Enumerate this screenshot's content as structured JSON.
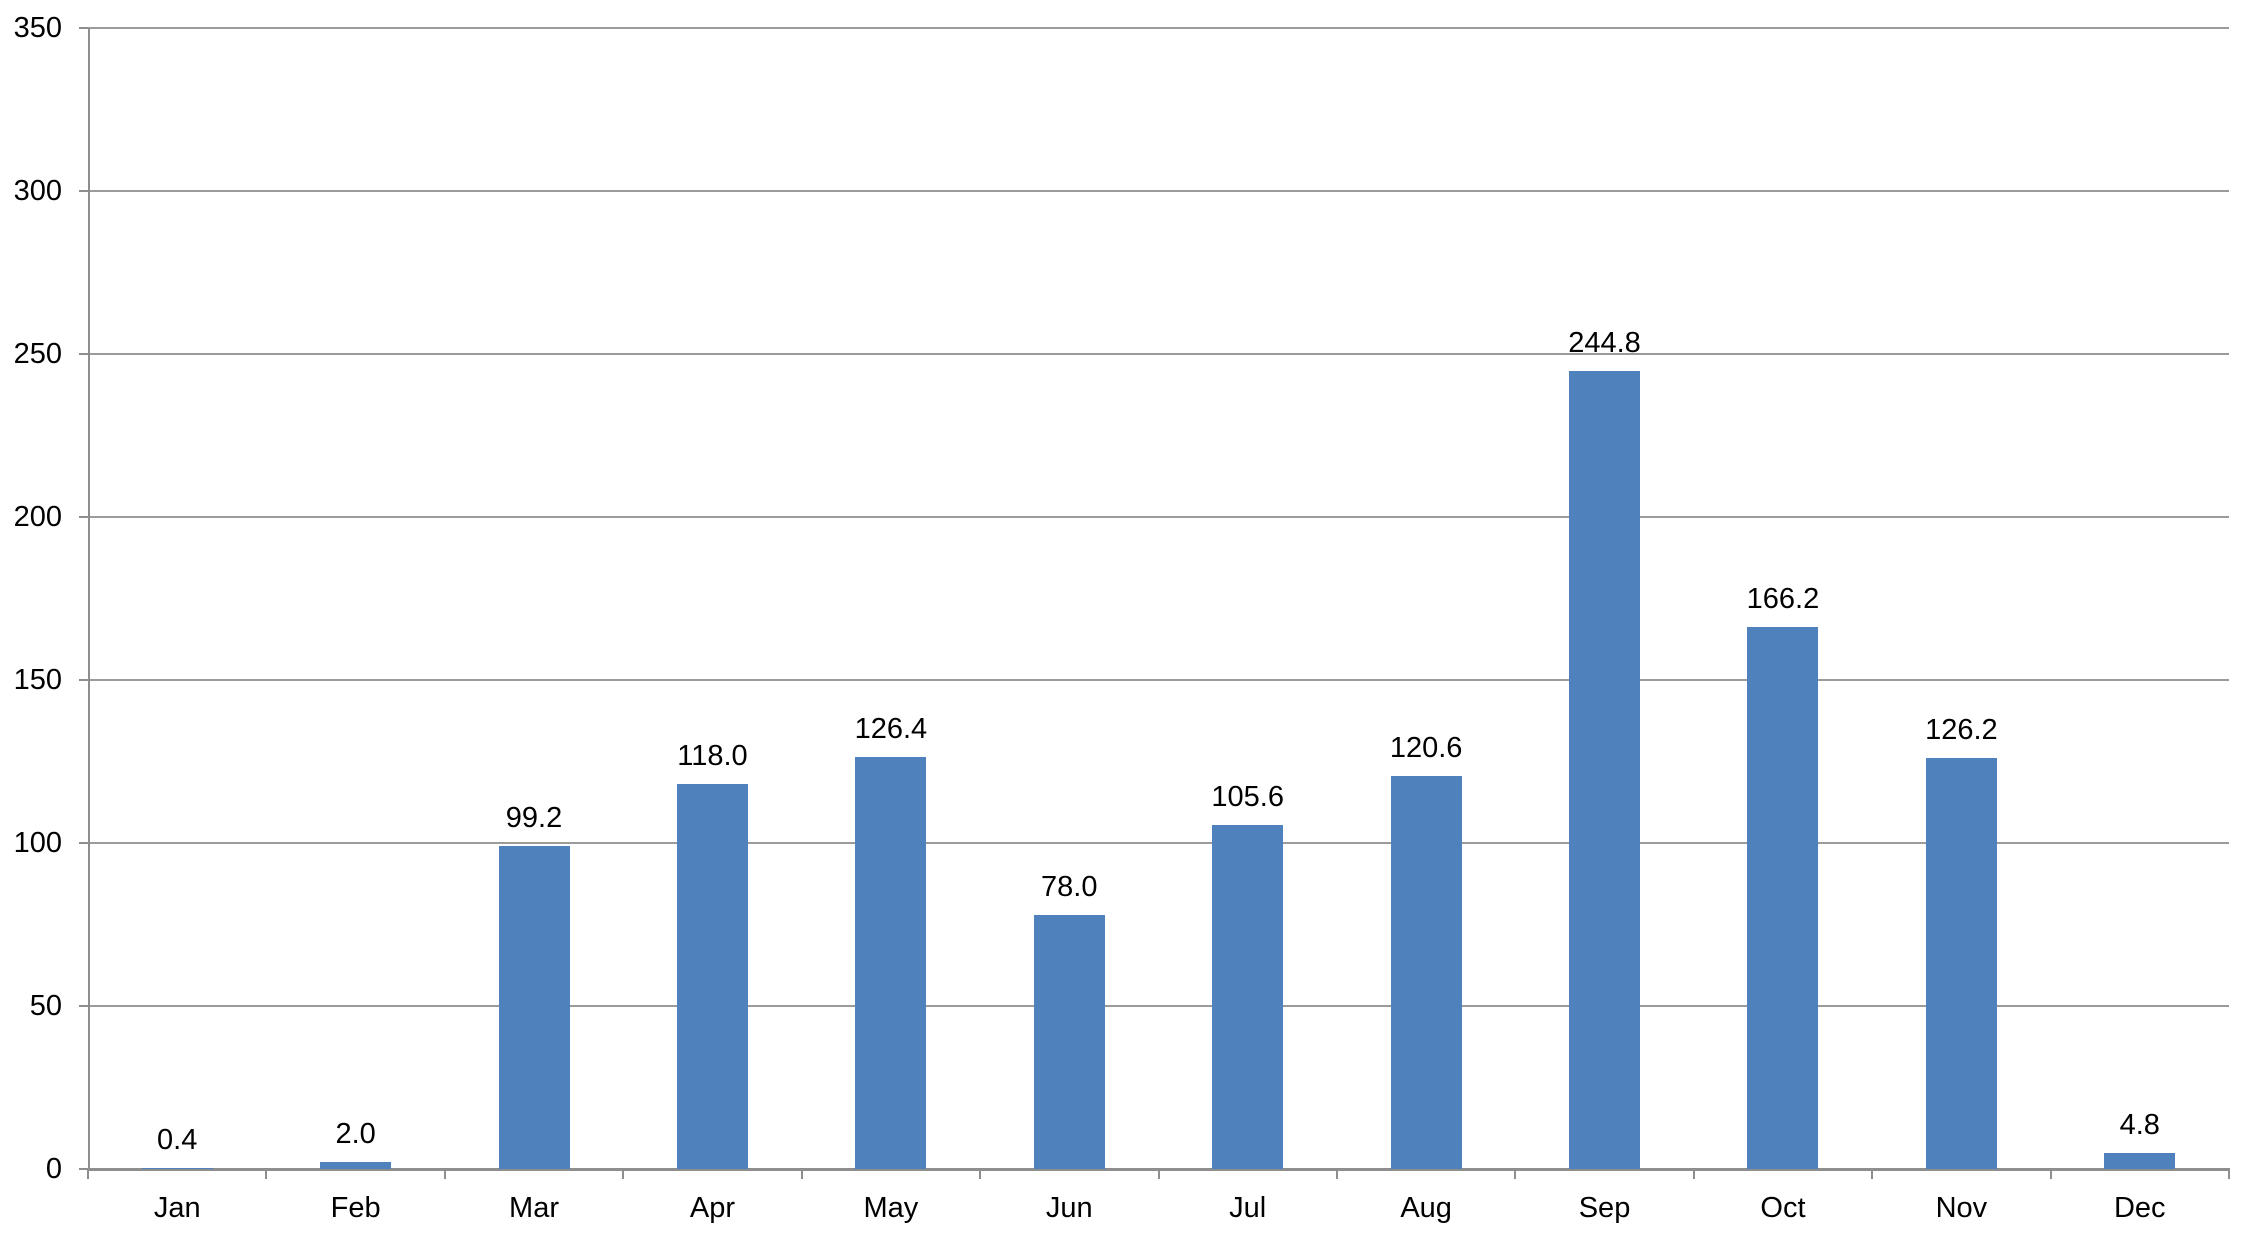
{
  "chart_data": {
    "type": "bar",
    "title": "",
    "xlabel": "",
    "ylabel": "",
    "categories": [
      "Jan",
      "Feb",
      "Mar",
      "Apr",
      "May",
      "Jun",
      "Jul",
      "Aug",
      "Sep",
      "Oct",
      "Nov",
      "Dec"
    ],
    "values": [
      0.4,
      2.0,
      99.2,
      118.0,
      126.4,
      78.0,
      105.6,
      120.6,
      244.8,
      166.2,
      126.2,
      4.8
    ],
    "data_labels": [
      "0.4",
      "2.0",
      "99.2",
      "118.0",
      "126.4",
      "78.0",
      "105.6",
      "120.6",
      "244.8",
      "166.2",
      "126.2",
      "4.8"
    ],
    "ylim": [
      0,
      350
    ],
    "y_ticks": [
      0,
      50,
      100,
      150,
      200,
      250,
      300,
      350
    ],
    "y_tick_labels": [
      "0",
      "50",
      "100",
      "150",
      "200",
      "250",
      "300",
      "350"
    ],
    "grid": true,
    "legend": false,
    "legend_position": "none",
    "colors": {
      "bar": "#4F81BD",
      "gridline": "#9B9B9B",
      "axis": "#8E8E8E",
      "text": "#000000",
      "background": "#FFFFFF"
    }
  }
}
